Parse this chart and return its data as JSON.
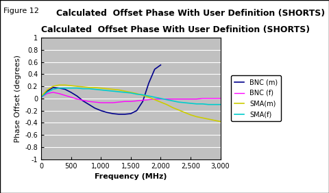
{
  "title": "Calculated  Offset Phase With User Definition (SHORTS)",
  "figure_label": "Figure 12",
  "xlabel": "Frequency (MHz)",
  "ylabel": "Phase Offset (degrees)",
  "xlim": [
    0,
    3000
  ],
  "ylim": [
    -1,
    1
  ],
  "yticks": [
    -1,
    -0.8,
    -0.6,
    -0.4,
    -0.2,
    0,
    0.2,
    0.4,
    0.6,
    0.8,
    1
  ],
  "xticks": [
    0,
    500,
    1000,
    1500,
    2000,
    2500,
    3000
  ],
  "xtick_labels": [
    "0",
    "500",
    "1,000",
    "1,500",
    "2,000",
    "2,500",
    "3,000"
  ],
  "plot_bg_color": "#c0c0c0",
  "series": [
    {
      "label": "BNC (m)",
      "color": "#00008B",
      "linewidth": 1.2,
      "x": [
        0,
        100,
        200,
        300,
        400,
        500,
        600,
        700,
        800,
        900,
        1000,
        1100,
        1200,
        1300,
        1400,
        1500,
        1600,
        1700,
        1800,
        1900,
        2000
      ],
      "y": [
        0.02,
        0.12,
        0.18,
        0.17,
        0.15,
        0.1,
        0.04,
        -0.04,
        -0.1,
        -0.16,
        -0.2,
        -0.23,
        -0.25,
        -0.26,
        -0.26,
        -0.25,
        -0.2,
        -0.05,
        0.25,
        0.48,
        0.55
      ]
    },
    {
      "label": "BNC (f)",
      "color": "#FF00FF",
      "linewidth": 1.0,
      "x": [
        0,
        100,
        200,
        300,
        400,
        500,
        600,
        700,
        800,
        900,
        1000,
        1100,
        1200,
        1300,
        1400,
        1500,
        1600,
        1700,
        1800,
        1900,
        2000,
        2100,
        2200,
        2300,
        2400,
        2500,
        2600,
        2700,
        2800,
        2900,
        3000
      ],
      "y": [
        0.02,
        0.08,
        0.1,
        0.08,
        0.05,
        0.02,
        -0.01,
        -0.03,
        -0.05,
        -0.06,
        -0.07,
        -0.07,
        -0.07,
        -0.06,
        -0.05,
        -0.05,
        -0.04,
        -0.03,
        -0.02,
        -0.01,
        -0.01,
        -0.01,
        -0.01,
        -0.01,
        -0.01,
        -0.01,
        -0.01,
        0.0,
        0.0,
        0.0,
        0.0
      ]
    },
    {
      "label": "SMA(m)",
      "color": "#CCCC00",
      "linewidth": 1.2,
      "x": [
        0,
        100,
        200,
        300,
        400,
        500,
        600,
        700,
        800,
        900,
        1000,
        1100,
        1200,
        1300,
        1400,
        1500,
        1600,
        1700,
        1800,
        1900,
        2000,
        2100,
        2200,
        2300,
        2400,
        2500,
        2600,
        2700,
        2800,
        2900,
        3000
      ],
      "y": [
        0.03,
        0.14,
        0.2,
        0.22,
        0.22,
        0.21,
        0.2,
        0.19,
        0.18,
        0.18,
        0.17,
        0.16,
        0.15,
        0.14,
        0.12,
        0.1,
        0.08,
        0.05,
        0.02,
        -0.02,
        -0.06,
        -0.1,
        -0.15,
        -0.19,
        -0.23,
        -0.27,
        -0.3,
        -0.32,
        -0.34,
        -0.36,
        -0.38
      ]
    },
    {
      "label": "SMA(f)",
      "color": "#00CCCC",
      "linewidth": 1.2,
      "x": [
        0,
        100,
        200,
        300,
        400,
        500,
        600,
        700,
        800,
        900,
        1000,
        1100,
        1200,
        1300,
        1400,
        1500,
        1600,
        1700,
        1800,
        1900,
        2000,
        2100,
        2200,
        2300,
        2400,
        2500,
        2600,
        2700,
        2800,
        2900,
        3000
      ],
      "y": [
        0.02,
        0.1,
        0.15,
        0.17,
        0.17,
        0.17,
        0.17,
        0.16,
        0.16,
        0.15,
        0.14,
        0.13,
        0.12,
        0.11,
        0.1,
        0.09,
        0.07,
        0.06,
        0.04,
        0.02,
        0.0,
        -0.02,
        -0.04,
        -0.06,
        -0.07,
        -0.08,
        -0.09,
        -0.09,
        -0.1,
        -0.1,
        -0.1
      ]
    }
  ],
  "grid_color": "white",
  "title_fontsize": 9,
  "label_fontsize": 8,
  "tick_fontsize": 7,
  "fig_label_fontsize": 8
}
